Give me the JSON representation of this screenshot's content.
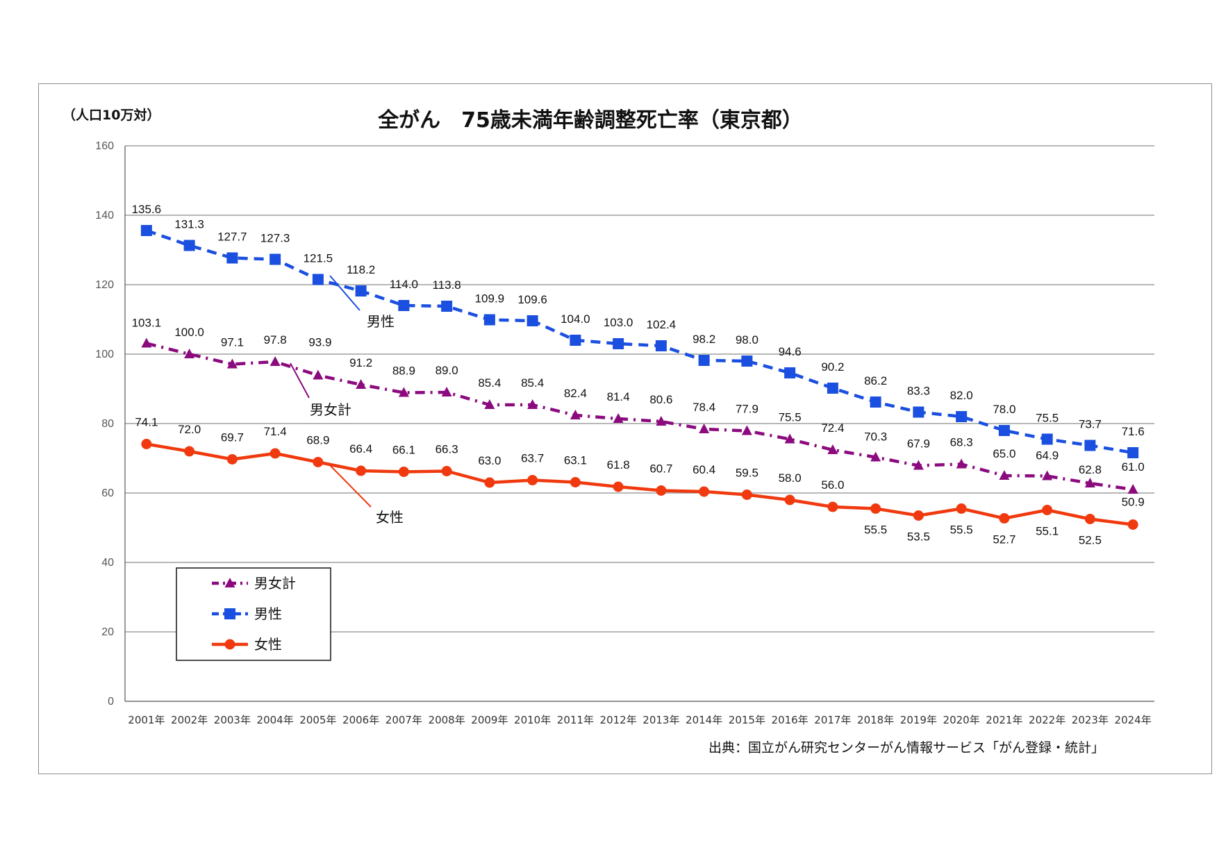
{
  "chart_data": {
    "type": "line",
    "title": "全がん　75歳未満年齢調整死亡率（東京都）",
    "unit_label": "（人口10万対）",
    "source": "出典：国立がん研究センターがん情報サービス「がん登録・統計」",
    "ylim": [
      0,
      160
    ],
    "yticks": [
      0,
      20,
      40,
      60,
      80,
      100,
      120,
      140,
      160
    ],
    "grid": true,
    "legend_position": "bottom-left",
    "categories": [
      "2001年",
      "2002年",
      "2003年",
      "2004年",
      "2005年",
      "2006年",
      "2007年",
      "2008年",
      "2009年",
      "2010年",
      "2011年",
      "2012年",
      "2013年",
      "2014年",
      "2015年",
      "2016年",
      "2017年",
      "2018年",
      "2019年",
      "2020年",
      "2021年",
      "2022年",
      "2023年",
      "2024年"
    ],
    "series": [
      {
        "name": "男女計",
        "color": "#8B0A7E",
        "marker": "triangle",
        "line_style": "dash-dot",
        "values": [
          103.1,
          100.0,
          97.1,
          97.8,
          93.9,
          91.2,
          88.9,
          89.0,
          85.4,
          85.4,
          82.4,
          81.4,
          80.6,
          78.4,
          77.9,
          75.5,
          72.4,
          70.3,
          67.9,
          68.3,
          65.0,
          64.9,
          62.8,
          61.0
        ],
        "labels": [
          "103.1",
          "100.0",
          "97.1",
          "97.8",
          "93.9",
          "91.2",
          "88.9",
          "89.0",
          "85.4",
          "85.4",
          "82.4",
          "81.4",
          "80.6",
          "78.4",
          "77.9",
          "75.5",
          "72.4",
          "70.3",
          "67.9",
          "68.3",
          "65.0",
          "64.9",
          "62.8",
          "61.0"
        ]
      },
      {
        "name": "男性",
        "color": "#1A4FE0",
        "marker": "square",
        "line_style": "dashed",
        "values": [
          135.6,
          131.3,
          127.7,
          127.3,
          121.5,
          118.2,
          114.0,
          113.8,
          109.9,
          109.6,
          104.0,
          103.0,
          102.4,
          98.2,
          98.0,
          94.6,
          90.2,
          86.2,
          83.3,
          82.0,
          78.0,
          75.5,
          73.7,
          71.6
        ],
        "labels": [
          "135.6",
          "131.3",
          "127.7",
          "127.3",
          "121.5",
          "118.2",
          "114.0",
          "113.8",
          "109.9",
          "109.6",
          "104.0",
          "103.0",
          "102.4",
          "98.2",
          "98.0",
          "94.6",
          "90.2",
          "86.2",
          "83.3",
          "82.0",
          "78.0",
          "75.5",
          "73.7",
          "71.6"
        ]
      },
      {
        "name": "女性",
        "color": "#F0390E",
        "marker": "circle",
        "line_style": "solid",
        "values": [
          74.1,
          72.0,
          69.7,
          71.4,
          68.9,
          66.4,
          66.1,
          66.3,
          63.0,
          63.7,
          63.1,
          61.8,
          60.7,
          60.4,
          59.5,
          58.0,
          56.0,
          55.5,
          53.5,
          55.5,
          52.7,
          55.1,
          52.5,
          50.9
        ],
        "labels": [
          "74.1",
          "72.0",
          "69.7",
          "71.4",
          "68.9",
          "66.4",
          "66.1",
          "66.3",
          "63.0",
          "63.7",
          "63.1",
          "61.8",
          "60.7",
          "60.4",
          "59.5",
          "58.0",
          "56.0",
          "55.5",
          "53.5",
          "55.5",
          "52.7",
          "55.1",
          "52.5",
          "50.9"
        ]
      }
    ],
    "annotations": [
      {
        "text": "男性",
        "series": "男性",
        "at_index": 4
      },
      {
        "text": "男女計",
        "series": "男女計",
        "at_index": 3
      },
      {
        "text": "女性",
        "series": "女性",
        "at_index": 4
      }
    ]
  }
}
